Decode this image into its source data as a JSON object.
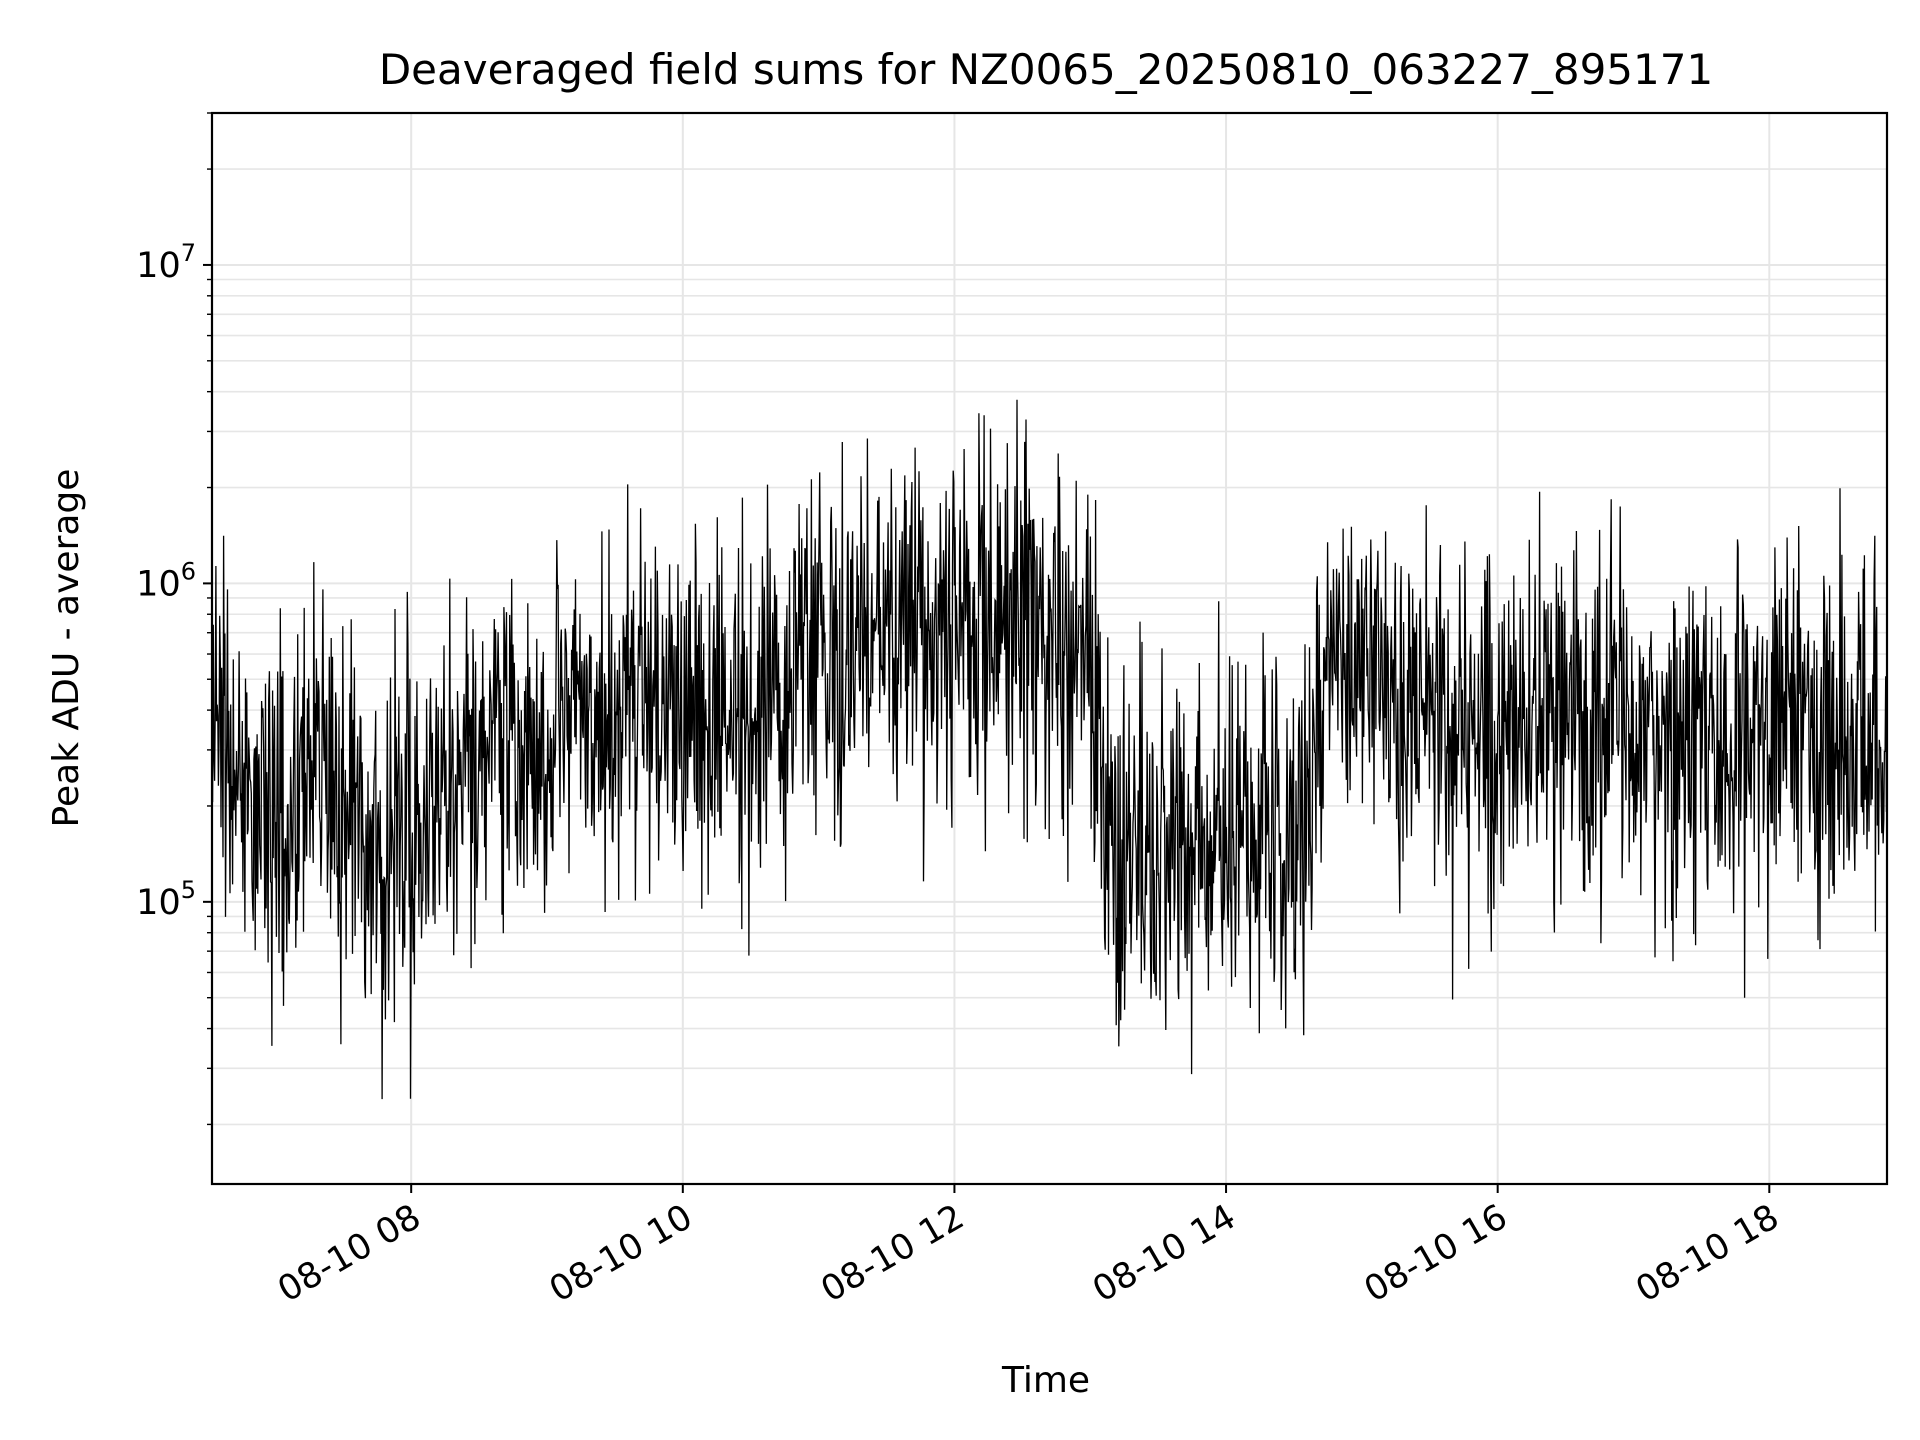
{
  "chart_data": {
    "type": "line",
    "title": "Deaveraged field sums for NZ0065_20250810_063227_895171",
    "xlabel": "Time",
    "ylabel": "Peak ADU - average",
    "y_scale": "log",
    "ylim": [
      13000,
      30000000
    ],
    "xlim": [
      "2025-08-10 06:32",
      "2025-08-10 18:52"
    ],
    "grid": true,
    "line_color": "#000000",
    "grid_color": "#e6e6e6",
    "x_ticks": [
      {
        "t": "2025-08-10 08:00",
        "label": "08-10 08"
      },
      {
        "t": "2025-08-10 10:00",
        "label": "08-10 10"
      },
      {
        "t": "2025-08-10 12:00",
        "label": "08-10 12"
      },
      {
        "t": "2025-08-10 14:00",
        "label": "08-10 14"
      },
      {
        "t": "2025-08-10 16:00",
        "label": "08-10 16"
      },
      {
        "t": "2025-08-10 18:00",
        "label": "08-10 18"
      }
    ],
    "y_ticks": [
      {
        "value": 100000,
        "base": "10",
        "exp": "5"
      },
      {
        "value": 1000000,
        "base": "10",
        "exp": "6"
      },
      {
        "value": 10000000,
        "base": "10",
        "exp": "7"
      }
    ],
    "series": [
      {
        "x": [
          "2025-08-10 06:32",
          "2025-08-10 06:48",
          "2025-08-10 07:04",
          "2025-08-10 07:20",
          "2025-08-10 07:36",
          "2025-08-10 07:52",
          "2025-08-10 08:08",
          "2025-08-10 08:24",
          "2025-08-10 08:40",
          "2025-08-10 08:56",
          "2025-08-10 09:12",
          "2025-08-10 09:28",
          "2025-08-10 09:44",
          "2025-08-10 10:00",
          "2025-08-10 10:16",
          "2025-08-10 10:32",
          "2025-08-10 10:48",
          "2025-08-10 11:04",
          "2025-08-10 11:20",
          "2025-08-10 11:36",
          "2025-08-10 11:52",
          "2025-08-10 12:08",
          "2025-08-10 12:24",
          "2025-08-10 12:40",
          "2025-08-10 12:56",
          "2025-08-10 13:12",
          "2025-08-10 13:28",
          "2025-08-10 13:44",
          "2025-08-10 14:00",
          "2025-08-10 14:16",
          "2025-08-10 14:32",
          "2025-08-10 14:48",
          "2025-08-10 15:04",
          "2025-08-10 15:20",
          "2025-08-10 15:36",
          "2025-08-10 15:52",
          "2025-08-10 16:08",
          "2025-08-10 16:24",
          "2025-08-10 16:40",
          "2025-08-10 16:56",
          "2025-08-10 17:12",
          "2025-08-10 17:28",
          "2025-08-10 17:44",
          "2025-08-10 18:00",
          "2025-08-10 18:16",
          "2025-08-10 18:32",
          "2025-08-10 18:48"
        ],
        "y": [
          400000,
          220000,
          180000,
          300000,
          150000,
          160000,
          200000,
          300000,
          350000,
          250000,
          400000,
          300000,
          450000,
          350000,
          450000,
          400000,
          500000,
          600000,
          700000,
          800000,
          650000,
          700000,
          750000,
          700000,
          650000,
          120000,
          130000,
          140000,
          150000,
          140000,
          160000,
          600000,
          500000,
          450000,
          400000,
          350000,
          300000,
          350000,
          400000,
          350000,
          300000,
          350000,
          300000,
          350000,
          400000,
          300000,
          350000
        ]
      }
    ]
  }
}
